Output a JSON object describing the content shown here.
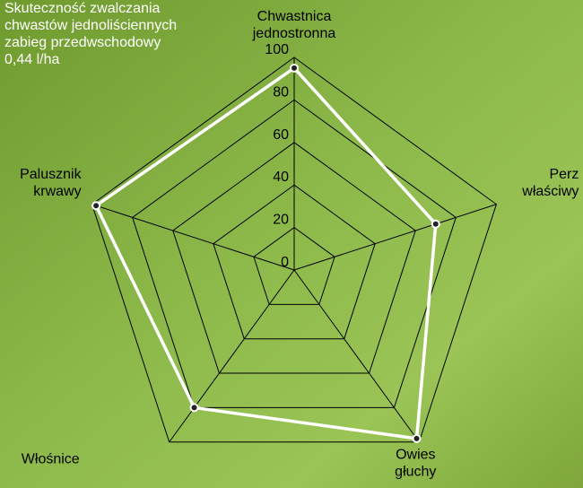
{
  "chart_data": {
    "type": "radar",
    "title_lines": [
      "Skuteczność zwalczania",
      "chwastów jednoliściennych",
      "zabieg przedwschodowy",
      "0,44 l/ha"
    ],
    "categories": [
      "Chwastnica jednostronna",
      "Perz właściwy",
      "Owies głuchy",
      "Włośnice",
      "Palusznik krwawy"
    ],
    "values": [
      95,
      70,
      98,
      80,
      98
    ],
    "color": "#ffffff",
    "ylim": [
      0,
      100
    ],
    "yticks": [
      0,
      20,
      40,
      60,
      80,
      100
    ],
    "grid": true
  }
}
